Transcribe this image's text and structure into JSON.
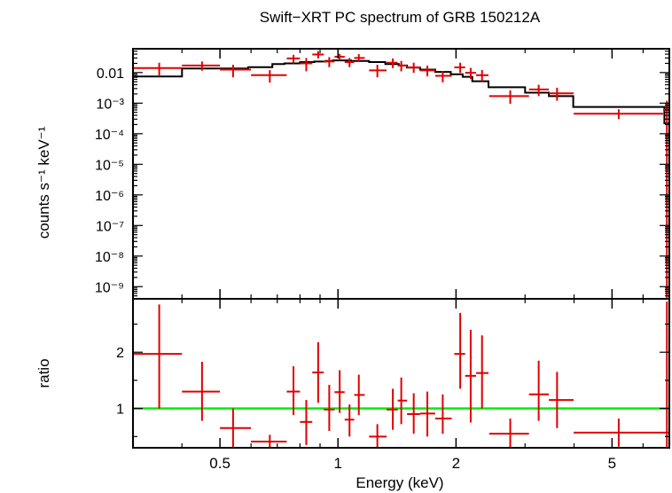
{
  "chart_data": [
    {
      "panel": "spectrum",
      "type": "scatter",
      "title": "Swift−XRT PC spectrum of GRB 150212A",
      "xlabel": "Energy (keV)",
      "ylabel": "counts s⁻¹ keV⁻¹",
      "xscale": "log",
      "yscale": "log",
      "xlim": [
        0.3,
        7.0
      ],
      "ylim": [
        4e-10,
        0.06
      ],
      "ytick_labels": [
        "0.01",
        "10⁻³",
        "10⁻⁴",
        "10⁻⁵",
        "10⁻⁶",
        "10⁻⁷",
        "10⁻⁸",
        "10⁻⁹"
      ],
      "ytick_values": [
        0.01,
        0.001,
        0.0001,
        1e-05,
        1e-06,
        1e-07,
        1e-08,
        1e-09
      ],
      "series": [
        {
          "name": "data",
          "color": "#e00000",
          "points": [
            {
              "x": 0.35,
              "xlo": 0.3,
              "xhi": 0.4,
              "y": 0.014,
              "ylo": 0.0075,
              "yhi": 0.021
            },
            {
              "x": 0.45,
              "xlo": 0.4,
              "xhi": 0.5,
              "y": 0.017,
              "ylo": 0.0115,
              "yhi": 0.023
            },
            {
              "x": 0.54,
              "xlo": 0.5,
              "xhi": 0.6,
              "y": 0.0125,
              "ylo": 0.007,
              "yhi": 0.018
            },
            {
              "x": 0.67,
              "xlo": 0.6,
              "xhi": 0.74,
              "y": 0.0082,
              "ylo": 0.0047,
              "yhi": 0.012
            },
            {
              "x": 0.77,
              "xlo": 0.74,
              "xhi": 0.8,
              "y": 0.029,
              "ylo": 0.02,
              "yhi": 0.038
            },
            {
              "x": 0.83,
              "xlo": 0.8,
              "xhi": 0.86,
              "y": 0.02,
              "ylo": 0.011,
              "yhi": 0.03
            },
            {
              "x": 0.89,
              "xlo": 0.86,
              "xhi": 0.92,
              "y": 0.039,
              "ylo": 0.029,
              "yhi": 0.05
            },
            {
              "x": 0.95,
              "xlo": 0.92,
              "xhi": 0.98,
              "y": 0.023,
              "ylo": 0.015,
              "yhi": 0.032
            },
            {
              "x": 1.01,
              "xlo": 0.98,
              "xhi": 1.04,
              "y": 0.033,
              "ylo": 0.025,
              "yhi": 0.041
            },
            {
              "x": 1.07,
              "xlo": 1.04,
              "xhi": 1.1,
              "y": 0.022,
              "ylo": 0.015,
              "yhi": 0.03
            },
            {
              "x": 1.13,
              "xlo": 1.1,
              "xhi": 1.17,
              "y": 0.03,
              "ylo": 0.022,
              "yhi": 0.04
            },
            {
              "x": 1.26,
              "xlo": 1.2,
              "xhi": 1.33,
              "y": 0.0118,
              "ylo": 0.007,
              "yhi": 0.018
            },
            {
              "x": 1.38,
              "xlo": 1.33,
              "xhi": 1.42,
              "y": 0.021,
              "ylo": 0.014,
              "yhi": 0.029
            },
            {
              "x": 1.45,
              "xlo": 1.42,
              "xhi": 1.5,
              "y": 0.017,
              "ylo": 0.011,
              "yhi": 0.024
            },
            {
              "x": 1.56,
              "xlo": 1.5,
              "xhi": 1.62,
              "y": 0.0148,
              "ylo": 0.0098,
              "yhi": 0.021
            },
            {
              "x": 1.69,
              "xlo": 1.62,
              "xhi": 1.77,
              "y": 0.0118,
              "ylo": 0.0075,
              "yhi": 0.0168
            },
            {
              "x": 1.85,
              "xlo": 1.77,
              "xhi": 1.95,
              "y": 0.0078,
              "ylo": 0.0048,
              "yhi": 0.0112
            },
            {
              "x": 2.05,
              "xlo": 1.98,
              "xhi": 2.11,
              "y": 0.0148,
              "ylo": 0.0098,
              "yhi": 0.021
            },
            {
              "x": 2.18,
              "xlo": 2.11,
              "xhi": 2.25,
              "y": 0.0098,
              "ylo": 0.0062,
              "yhi": 0.0142
            },
            {
              "x": 2.33,
              "xlo": 2.25,
              "xhi": 2.42,
              "y": 0.0082,
              "ylo": 0.0052,
              "yhi": 0.0122
            },
            {
              "x": 2.75,
              "xlo": 2.43,
              "xhi": 3.07,
              "y": 0.0017,
              "ylo": 0.00095,
              "yhi": 0.0026
            },
            {
              "x": 3.25,
              "xlo": 3.07,
              "xhi": 3.45,
              "y": 0.0028,
              "ylo": 0.0017,
              "yhi": 0.004
            },
            {
              "x": 3.62,
              "xlo": 3.45,
              "xhi": 3.99,
              "y": 0.0021,
              "ylo": 0.0012,
              "yhi": 0.0032
            },
            {
              "x": 5.2,
              "xlo": 3.99,
              "xhi": 6.75,
              "y": 0.00045,
              "ylo": 0.0003,
              "yhi": 0.00063
            },
            {
              "x": 6.9,
              "xlo": 6.75,
              "xhi": 7.0,
              "y": 0.0006,
              "ylo": 4e-10,
              "yhi": 0.0012
            }
          ]
        },
        {
          "name": "model",
          "color": "#000000",
          "steps": [
            {
              "x0": 0.3,
              "x1": 0.4,
              "y": 0.0074
            },
            {
              "x0": 0.4,
              "x1": 0.59,
              "y": 0.0135
            },
            {
              "x0": 0.59,
              "x1": 0.68,
              "y": 0.015
            },
            {
              "x0": 0.68,
              "x1": 0.73,
              "y": 0.019
            },
            {
              "x0": 0.73,
              "x1": 0.8,
              "y": 0.02
            },
            {
              "x0": 0.8,
              "x1": 0.87,
              "y": 0.022
            },
            {
              "x0": 0.87,
              "x1": 0.93,
              "y": 0.023
            },
            {
              "x0": 0.93,
              "x1": 0.97,
              "y": 0.024
            },
            {
              "x0": 0.97,
              "x1": 1.08,
              "y": 0.025
            },
            {
              "x0": 1.08,
              "x1": 1.2,
              "y": 0.024
            },
            {
              "x0": 1.2,
              "x1": 1.32,
              "y": 0.022
            },
            {
              "x0": 1.32,
              "x1": 1.43,
              "y": 0.019
            },
            {
              "x0": 1.43,
              "x1": 1.5,
              "y": 0.017
            },
            {
              "x0": 1.5,
              "x1": 1.62,
              "y": 0.0145
            },
            {
              "x0": 1.62,
              "x1": 1.77,
              "y": 0.0125
            },
            {
              "x0": 1.77,
              "x1": 1.94,
              "y": 0.0105
            },
            {
              "x0": 1.94,
              "x1": 2.08,
              "y": 0.0088
            },
            {
              "x0": 2.08,
              "x1": 2.2,
              "y": 0.0073
            },
            {
              "x0": 2.2,
              "x1": 2.42,
              "y": 0.0052
            },
            {
              "x0": 2.42,
              "x1": 3.0,
              "y": 0.0033
            },
            {
              "x0": 3.0,
              "x1": 3.45,
              "y": 0.0022
            },
            {
              "x0": 3.45,
              "x1": 3.98,
              "y": 0.0017
            },
            {
              "x0": 3.98,
              "x1": 6.8,
              "y": 0.00075
            },
            {
              "x0": 6.8,
              "x1": 7.0,
              "y": 0.00022
            }
          ]
        }
      ]
    },
    {
      "panel": "ratio",
      "type": "scatter",
      "xlabel": "Energy (keV)",
      "ylabel": "ratio",
      "xscale": "log",
      "yscale": "linear",
      "xlim": [
        0.3,
        7.0
      ],
      "ylim": [
        0.3,
        2.95
      ],
      "ytick_labels": [
        "1",
        "2"
      ],
      "ytick_values": [
        1,
        2
      ],
      "xtick_labels": [
        "0.5",
        "1",
        "2",
        "5"
      ],
      "xtick_values": [
        0.5,
        1,
        2,
        5
      ],
      "reference_line": {
        "y": 1,
        "color": "#00ee00"
      },
      "series": [
        {
          "name": "ratio",
          "color": "#e00000",
          "points": [
            {
              "x": 0.35,
              "xlo": 0.3,
              "xhi": 0.4,
              "y": 1.97,
              "ylo": 1.0,
              "yhi": 2.85
            },
            {
              "x": 0.45,
              "xlo": 0.4,
              "xhi": 0.5,
              "y": 1.3,
              "ylo": 0.78,
              "yhi": 1.83
            },
            {
              "x": 0.54,
              "xlo": 0.5,
              "xhi": 0.6,
              "y": 0.65,
              "ylo": 0.3,
              "yhi": 1.0
            },
            {
              "x": 0.67,
              "xlo": 0.6,
              "xhi": 0.74,
              "y": 0.41,
              "ylo": 0.3,
              "yhi": 0.53
            },
            {
              "x": 0.77,
              "xlo": 0.74,
              "xhi": 0.8,
              "y": 1.3,
              "ylo": 0.88,
              "yhi": 1.75
            },
            {
              "x": 0.83,
              "xlo": 0.8,
              "xhi": 0.86,
              "y": 0.76,
              "ylo": 0.35,
              "yhi": 1.15
            },
            {
              "x": 0.89,
              "xlo": 0.86,
              "xhi": 0.92,
              "y": 1.64,
              "ylo": 1.1,
              "yhi": 2.18
            },
            {
              "x": 0.95,
              "xlo": 0.92,
              "xhi": 0.98,
              "y": 0.98,
              "ylo": 0.6,
              "yhi": 1.42
            },
            {
              "x": 1.01,
              "xlo": 0.98,
              "xhi": 1.04,
              "y": 1.29,
              "ylo": 0.92,
              "yhi": 1.68
            },
            {
              "x": 1.07,
              "xlo": 1.04,
              "xhi": 1.1,
              "y": 0.8,
              "ylo": 0.5,
              "yhi": 1.07
            },
            {
              "x": 1.13,
              "xlo": 1.1,
              "xhi": 1.17,
              "y": 1.24,
              "ylo": 0.88,
              "yhi": 1.6
            },
            {
              "x": 1.26,
              "xlo": 1.2,
              "xhi": 1.33,
              "y": 0.5,
              "ylo": 0.3,
              "yhi": 0.72
            },
            {
              "x": 1.38,
              "xlo": 1.33,
              "xhi": 1.42,
              "y": 0.98,
              "ylo": 0.62,
              "yhi": 1.35
            },
            {
              "x": 1.45,
              "xlo": 1.42,
              "xhi": 1.5,
              "y": 1.14,
              "ylo": 0.72,
              "yhi": 1.55
            },
            {
              "x": 1.56,
              "xlo": 1.5,
              "xhi": 1.62,
              "y": 0.9,
              "ylo": 0.55,
              "yhi": 1.27
            },
            {
              "x": 1.69,
              "xlo": 1.62,
              "xhi": 1.77,
              "y": 0.91,
              "ylo": 0.5,
              "yhi": 1.3
            },
            {
              "x": 1.85,
              "xlo": 1.77,
              "xhi": 1.95,
              "y": 0.82,
              "ylo": 0.55,
              "yhi": 1.25
            },
            {
              "x": 2.05,
              "xlo": 1.98,
              "xhi": 2.11,
              "y": 1.97,
              "ylo": 1.35,
              "yhi": 2.7
            },
            {
              "x": 2.18,
              "xlo": 2.11,
              "xhi": 2.25,
              "y": 1.58,
              "ylo": 0.75,
              "yhi": 2.4
            },
            {
              "x": 2.33,
              "xlo": 2.25,
              "xhi": 2.42,
              "y": 1.63,
              "ylo": 1.0,
              "yhi": 2.3
            },
            {
              "x": 2.75,
              "xlo": 2.43,
              "xhi": 3.07,
              "y": 0.55,
              "ylo": 0.3,
              "yhi": 0.82
            },
            {
              "x": 3.25,
              "xlo": 3.07,
              "xhi": 3.45,
              "y": 1.25,
              "ylo": 0.78,
              "yhi": 1.85
            },
            {
              "x": 3.62,
              "xlo": 3.45,
              "xhi": 3.99,
              "y": 1.15,
              "ylo": 0.65,
              "yhi": 1.65
            },
            {
              "x": 5.2,
              "xlo": 3.99,
              "xhi": 6.75,
              "y": 0.57,
              "ylo": 0.32,
              "yhi": 0.82
            },
            {
              "x": 6.9,
              "xlo": 6.75,
              "xhi": 7.0,
              "y": 0.57,
              "ylo": 0.3,
              "yhi": 2.9
            }
          ]
        }
      ]
    }
  ]
}
